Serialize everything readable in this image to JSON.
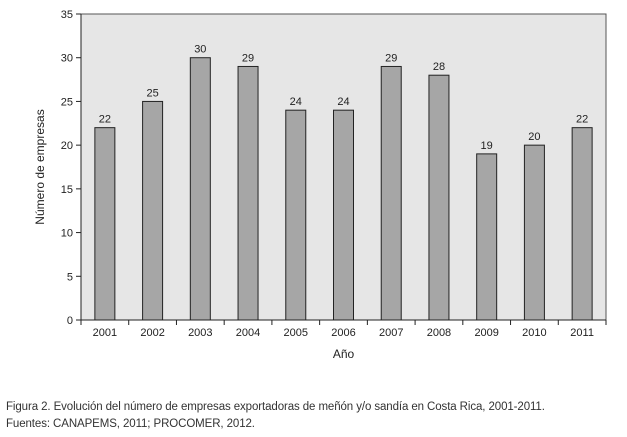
{
  "chart_data": {
    "type": "bar",
    "categories": [
      "2001",
      "2002",
      "2003",
      "2004",
      "2005",
      "2006",
      "2007",
      "2008",
      "2009",
      "2010",
      "2011"
    ],
    "values": [
      22,
      25,
      30,
      29,
      24,
      24,
      29,
      28,
      19,
      20,
      22
    ],
    "data_labels": [
      "22",
      "25",
      "30",
      "29",
      "24",
      "24",
      "29",
      "28",
      "19",
      "20",
      "22"
    ],
    "title": "",
    "xlabel": "Año",
    "ylabel": "Número de empresas",
    "ylim": [
      0,
      35
    ],
    "yticks": [
      "0",
      "5",
      "10",
      "15",
      "20",
      "25",
      "30",
      "35"
    ],
    "grid": false,
    "colors": {
      "plot_background": "#e6e6e6",
      "bar_fill": "#a6a6a6",
      "bar_stroke": "#222222"
    }
  },
  "caption": {
    "line1": "Figura 2. Evolución del número de empresas exportadoras de meñón y/o sandía en Costa Rica, 2001-2011.",
    "line2": "Fuentes: CANAPEMS, 2011; PROCOMER, 2012."
  }
}
